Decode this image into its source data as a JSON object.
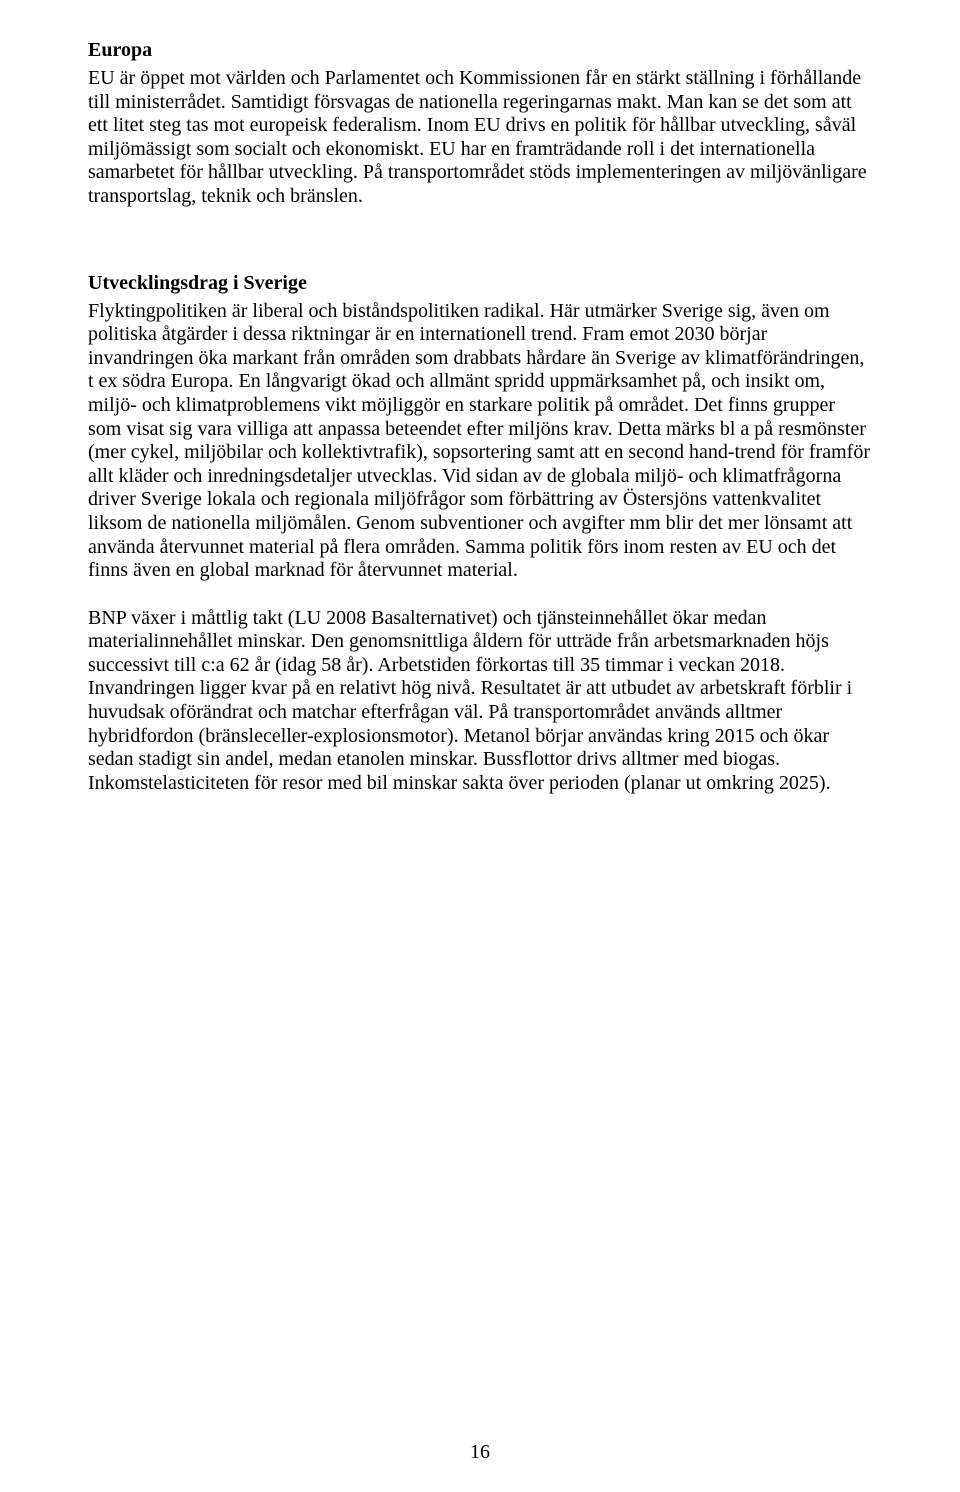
{
  "section1": {
    "heading": "Europa",
    "paragraph": "EU är öppet mot världen och Parlamentet och Kommissionen får en stärkt ställning i förhållande till ministerrådet. Samtidigt försvagas de nationella regeringarnas makt. Man kan se det som att ett litet steg tas mot europeisk federalism. Inom EU drivs en politik för hållbar utveckling, såväl miljömässigt som socialt och ekonomiskt. EU har en framträdande roll i det internationella samarbetet för hållbar utveckling. På transportområdet stöds implementeringen av miljövänligare transportslag, teknik och bränslen."
  },
  "section2": {
    "heading": "Utvecklingsdrag i Sverige",
    "paragraph1": "Flyktingpolitiken är liberal och biståndspolitiken radikal. Här utmärker Sverige sig, även om politiska åtgärder i dessa riktningar är en internationell trend. Fram emot 2030 börjar invandringen öka markant från områden som drabbats hårdare än Sverige av klimatförändringen, t ex södra Europa. En långvarigt ökad och allmänt spridd uppmärksamhet på, och insikt om, miljö- och klimatproblemens vikt möjliggör en starkare politik på området. Det finns grupper som visat sig vara villiga att anpassa beteendet efter miljöns krav. Detta märks bl a på resmönster (mer cykel, miljöbilar och kollektivtrafik), sopsortering samt att en second hand-trend för framför allt kläder och inredningsdetaljer utvecklas. Vid sidan av de globala miljö- och klimatfrågorna driver Sverige lokala och regionala miljöfrågor som förbättring av Östersjöns vattenkvalitet liksom de nationella miljömålen. Genom subventioner och avgifter mm blir det mer lönsamt att använda återvunnet material på flera områden. Samma politik förs inom resten av EU och det finns även en global marknad för återvunnet material.",
    "paragraph2": "BNP växer i måttlig takt (LU 2008 Basalternativet) och tjänsteinnehållet ökar medan materialinnehållet minskar. Den genomsnittliga åldern för utträde från arbetsmarknaden höjs successivt till c:a 62 år (idag 58 år). Arbetstiden förkortas till 35 timmar i veckan 2018. Invandringen ligger kvar på en relativt hög nivå. Resultatet är att utbudet av arbetskraft förblir i huvudsak oförändrat och matchar efterfrågan väl. På transportområdet används alltmer hybridfordon (bränsleceller-explosionsmotor). Metanol börjar användas kring 2015 och ökar sedan stadigt sin andel, medan etanolen minskar. Bussflottor drivs alltmer med biogas. Inkomstelasticiteten för resor med bil minskar sakta över perioden (planar ut omkring 2025)."
  },
  "pageNumber": "16"
}
